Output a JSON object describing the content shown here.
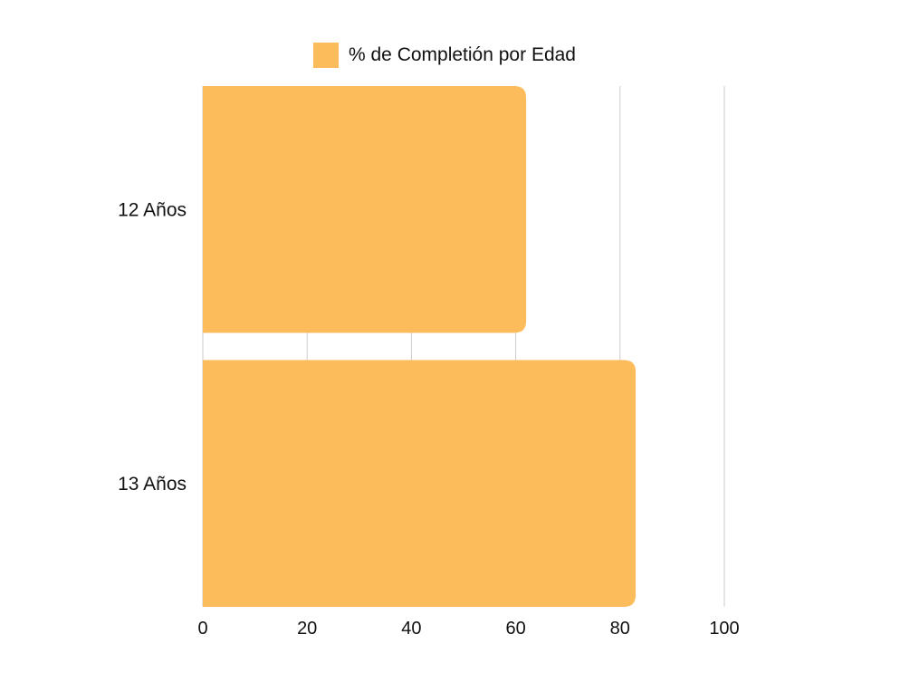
{
  "chart_data": {
    "type": "bar",
    "orientation": "horizontal",
    "categories": [
      "12 Años",
      "13 Años"
    ],
    "series": [
      {
        "name": "% de Completión por Edad",
        "values": [
          62,
          83
        ]
      }
    ],
    "xlim": [
      0,
      100
    ],
    "x_ticks": [
      "0",
      "20",
      "40",
      "60",
      "80",
      "100"
    ],
    "grid": true,
    "legend_position": "top-center",
    "colors": {
      "bar": "#FDBC5C",
      "grid": "#CCCCCC",
      "text": "#111111"
    }
  }
}
